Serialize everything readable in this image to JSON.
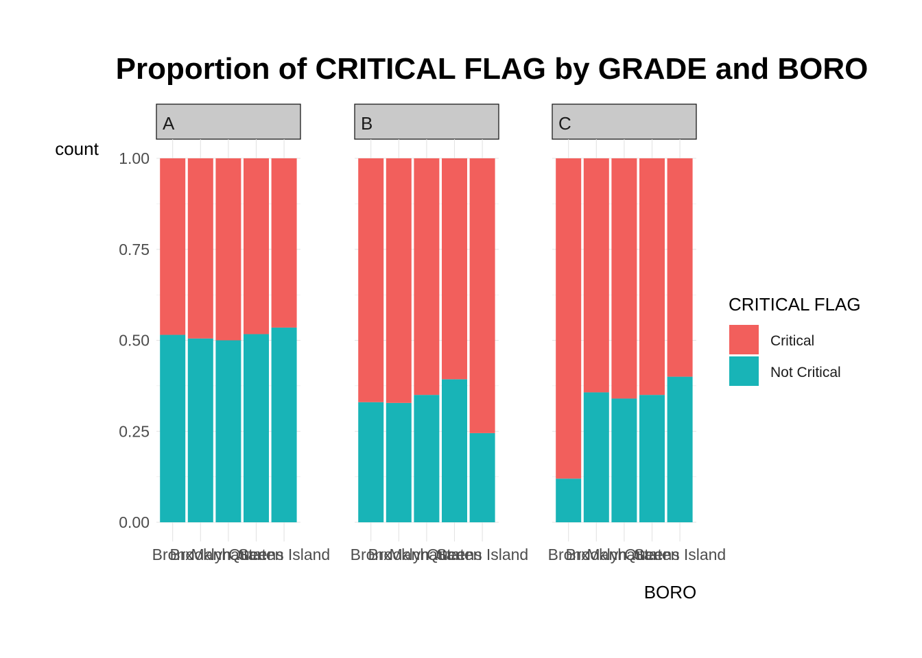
{
  "chart_data": {
    "type": "bar",
    "stacked": true,
    "title": "Proportion of CRITICAL FLAG by GRADE and BORO",
    "xlabel": "BORO",
    "ylabel": "count",
    "ylim": [
      0,
      1
    ],
    "yticks": [
      "0.00",
      "0.25",
      "0.50",
      "0.75",
      "1.00"
    ],
    "categories": [
      "Bronx",
      "Brooklyn",
      "Manhattan",
      "Queens",
      "Staten Island"
    ],
    "facets": [
      {
        "label": "A",
        "series": [
          {
            "name": "Not Critical",
            "values": [
              0.515,
              0.505,
              0.5,
              0.517,
              0.535
            ]
          },
          {
            "name": "Critical",
            "values": [
              0.485,
              0.495,
              0.5,
              0.483,
              0.465
            ]
          }
        ]
      },
      {
        "label": "B",
        "series": [
          {
            "name": "Not Critical",
            "values": [
              0.33,
              0.328,
              0.35,
              0.393,
              0.245
            ]
          },
          {
            "name": "Critical",
            "values": [
              0.67,
              0.672,
              0.65,
              0.607,
              0.755
            ]
          }
        ]
      },
      {
        "label": "C",
        "series": [
          {
            "name": "Not Critical",
            "values": [
              0.12,
              0.357,
              0.34,
              0.35,
              0.4
            ]
          },
          {
            "name": "Critical",
            "values": [
              0.88,
              0.643,
              0.66,
              0.65,
              0.6
            ]
          }
        ]
      }
    ],
    "legend": {
      "title": "CRITICAL FLAG",
      "position": "right",
      "entries": [
        {
          "name": "Critical",
          "color": "#F25F5C"
        },
        {
          "name": "Not Critical",
          "color": "#18B4B7"
        }
      ]
    },
    "colors": {
      "Critical": "#F25F5C",
      "Not Critical": "#18B4B7",
      "strip": "#C9C9C9",
      "grid": "#E3E3E3"
    },
    "grid": true
  }
}
